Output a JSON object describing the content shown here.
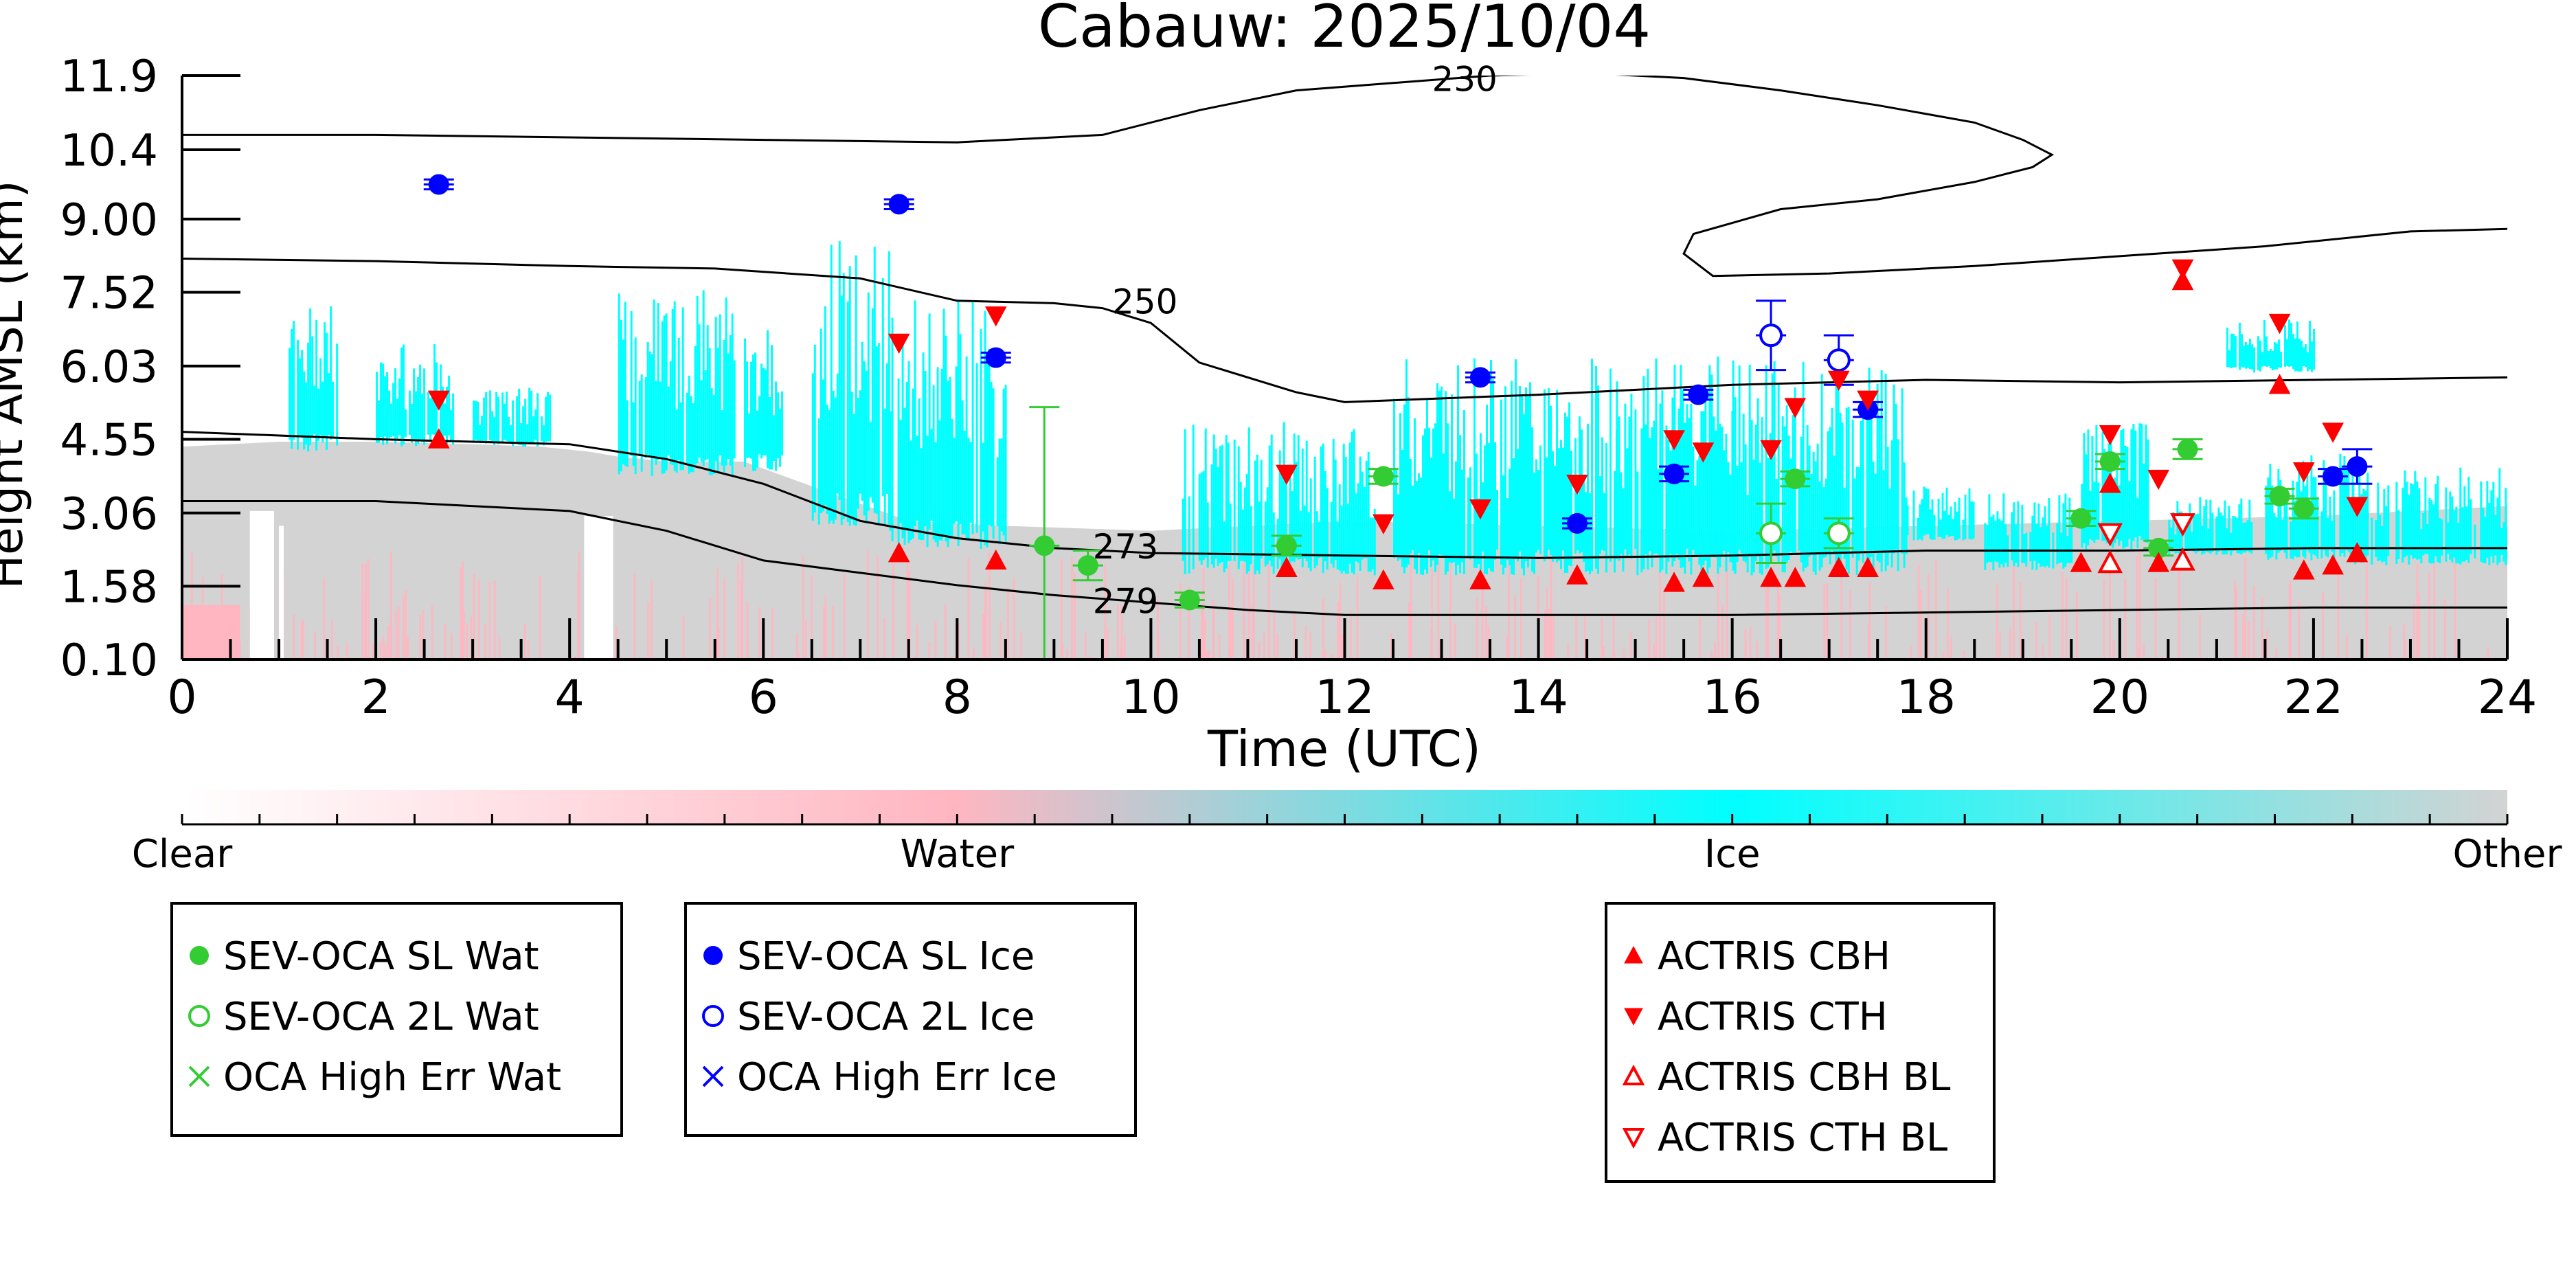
{
  "chart_data": {
    "type": "scatter",
    "title": "Cabauw: 2025/10/04",
    "xlabel": "Time (UTC)",
    "ylabel": "Height AMSL (km)",
    "xlim": [
      0,
      24
    ],
    "x_ticks": [
      0,
      2,
      4,
      6,
      8,
      10,
      12,
      14,
      16,
      18,
      20,
      22,
      24
    ],
    "y_ticks": [
      "0.10",
      "1.58",
      "3.06",
      "4.55",
      "6.03",
      "7.52",
      "9.00",
      "10.4",
      "11.9"
    ],
    "y_tick_values": [
      0.1,
      1.58,
      3.06,
      4.55,
      6.03,
      7.52,
      9.0,
      10.4,
      11.9
    ],
    "colorbar": {
      "labels": [
        "Clear",
        "Water",
        "Ice",
        "Other"
      ],
      "colors": [
        "#ffffff",
        "#ffb6c1",
        "#00ffff",
        "#d3d3d3"
      ]
    },
    "contours": [
      {
        "label": "230",
        "label_x": 12.9,
        "label_y": 11.7,
        "x": [
          0,
          2,
          4,
          6,
          8,
          9.5,
          10.5,
          11.5,
          12.5,
          13.5,
          14.5,
          15.5,
          16.5,
          17.5,
          18.5,
          19.0,
          19.3,
          19.1,
          18.5,
          17.5,
          16.5,
          15.6,
          15.5,
          15.8,
          17,
          18.5,
          20,
          21.5,
          23,
          24
        ],
        "y": [
          10.7,
          10.7,
          10.65,
          10.6,
          10.55,
          10.7,
          11.2,
          11.6,
          11.75,
          11.9,
          11.95,
          11.85,
          11.6,
          11.3,
          10.95,
          10.6,
          10.3,
          10.05,
          9.75,
          9.4,
          9.2,
          8.7,
          8.3,
          7.85,
          7.9,
          8.05,
          8.25,
          8.45,
          8.75,
          8.8
        ]
      },
      {
        "label": "250",
        "label_x": 9.6,
        "label_y": 7.2,
        "x": [
          0,
          2,
          4,
          5.5,
          7,
          8,
          9,
          9.5,
          10,
          10.5,
          11.5,
          12,
          14,
          16,
          18,
          20,
          22,
          24
        ],
        "y": [
          8.2,
          8.15,
          8.05,
          8.0,
          7.8,
          7.35,
          7.3,
          7.2,
          6.9,
          6.1,
          5.5,
          5.3,
          5.45,
          5.65,
          5.75,
          5.7,
          5.75,
          5.8
        ]
      },
      {
        "label": "273",
        "label_x": 9.4,
        "label_y": 2.25,
        "x": [
          0,
          2,
          4,
          5,
          6,
          7,
          8,
          9,
          10,
          12,
          14,
          16,
          18,
          20,
          22,
          24
        ],
        "y": [
          4.7,
          4.55,
          4.45,
          4.15,
          3.65,
          2.9,
          2.55,
          2.35,
          2.25,
          2.2,
          2.15,
          2.2,
          2.3,
          2.3,
          2.35,
          2.35
        ]
      },
      {
        "label": "279",
        "label_x": 9.4,
        "label_y": 1.15,
        "x": [
          0,
          2,
          4,
          5,
          6,
          7,
          8,
          9,
          10,
          11,
          12,
          14,
          16,
          18,
          20,
          22,
          24
        ],
        "y": [
          3.3,
          3.3,
          3.1,
          2.7,
          2.1,
          1.85,
          1.6,
          1.4,
          1.25,
          1.1,
          1.0,
          1.0,
          1.0,
          1.05,
          1.1,
          1.15,
          1.15
        ]
      }
    ],
    "series": [
      {
        "name": "SEV-OCA SL Wat",
        "color": "#33cc33",
        "marker": "filled-circle",
        "points": [
          [
            8.9,
            2.4,
            2.8
          ],
          [
            9.35,
            2.0,
            0.3
          ],
          [
            10.4,
            1.3,
            0.15
          ],
          [
            11.4,
            2.4,
            0.2
          ],
          [
            12.4,
            3.8,
            0.15
          ],
          [
            16.65,
            3.75,
            0.15
          ],
          [
            19.6,
            2.95,
            0.15
          ],
          [
            19.9,
            4.1,
            0.15
          ],
          [
            20.4,
            2.35,
            0.15
          ],
          [
            20.7,
            4.35,
            0.2
          ],
          [
            21.65,
            3.4,
            0.15
          ],
          [
            21.9,
            3.15,
            0.2
          ]
        ]
      },
      {
        "name": "SEV-OCA 2L Wat",
        "color": "#33cc33",
        "marker": "open-circle",
        "points": [
          [
            16.4,
            2.65,
            0.6
          ],
          [
            17.1,
            2.65,
            0.3
          ]
        ]
      },
      {
        "name": "OCA High Err Wat",
        "color": "#33cc33",
        "marker": "x",
        "points": []
      },
      {
        "name": "SEV-OCA SL Ice",
        "color": "#0000ff",
        "marker": "filled-circle",
        "points": [
          [
            2.65,
            9.7,
            0.1
          ],
          [
            7.4,
            9.3,
            0.1
          ],
          [
            8.4,
            6.2,
            0.1
          ],
          [
            13.4,
            5.8,
            0.1
          ],
          [
            14.4,
            2.85,
            0.1
          ],
          [
            15.4,
            3.85,
            0.15
          ],
          [
            15.65,
            5.45,
            0.1
          ],
          [
            17.4,
            5.15,
            0.15
          ],
          [
            22.2,
            3.8,
            0.15
          ],
          [
            22.45,
            4.0,
            0.35
          ]
        ]
      },
      {
        "name": "SEV-OCA 2L Ice",
        "color": "#0000ff",
        "marker": "open-circle",
        "points": [
          [
            16.4,
            6.65,
            0.7
          ],
          [
            17.1,
            6.15,
            0.5
          ]
        ]
      },
      {
        "name": "OCA High Err Ice",
        "color": "#0000ff",
        "marker": "x",
        "points": []
      },
      {
        "name": "ACTRIS CBH",
        "color": "#ff0000",
        "marker": "triangle-up",
        "points": [
          [
            2.65,
            4.55
          ],
          [
            7.4,
            2.25
          ],
          [
            8.4,
            2.1
          ],
          [
            11.4,
            1.95
          ],
          [
            12.4,
            1.7
          ],
          [
            13.4,
            1.7
          ],
          [
            14.4,
            1.8
          ],
          [
            15.4,
            1.65
          ],
          [
            15.7,
            1.75
          ],
          [
            16.4,
            1.75
          ],
          [
            16.65,
            1.75
          ],
          [
            17.1,
            1.95
          ],
          [
            17.4,
            1.95
          ],
          [
            19.6,
            2.05
          ],
          [
            19.9,
            3.65
          ],
          [
            20.4,
            2.05
          ],
          [
            21.65,
            5.65
          ],
          [
            20.65,
            7.75
          ],
          [
            21.9,
            1.9
          ],
          [
            22.2,
            2.0
          ],
          [
            22.45,
            2.25
          ]
        ]
      },
      {
        "name": "ACTRIS CTH",
        "color": "#ff0000",
        "marker": "triangle-down",
        "points": [
          [
            2.65,
            5.35
          ],
          [
            7.4,
            6.5
          ],
          [
            8.4,
            7.05
          ],
          [
            11.4,
            3.85
          ],
          [
            12.4,
            2.85
          ],
          [
            13.4,
            3.15
          ],
          [
            14.4,
            3.65
          ],
          [
            15.4,
            4.55
          ],
          [
            15.7,
            4.3
          ],
          [
            16.4,
            4.35
          ],
          [
            16.65,
            5.2
          ],
          [
            17.1,
            5.75
          ],
          [
            17.4,
            5.35
          ],
          [
            19.9,
            4.65
          ],
          [
            20.4,
            3.75
          ],
          [
            20.65,
            8.0
          ],
          [
            21.65,
            6.9
          ],
          [
            21.9,
            3.9
          ],
          [
            22.2,
            4.7
          ],
          [
            22.45,
            3.2
          ]
        ]
      },
      {
        "name": "ACTRIS CBH BL",
        "color": "#ff0000",
        "marker": "open-triangle-up",
        "points": [
          [
            19.9,
            2.05
          ],
          [
            20.65,
            2.1
          ]
        ]
      },
      {
        "name": "ACTRIS CTH BL",
        "color": "#ff0000",
        "marker": "open-triangle-down",
        "points": [
          [
            19.9,
            2.65
          ],
          [
            20.65,
            2.85
          ]
        ]
      }
    ],
    "legend_groups": [
      [
        "SEV-OCA SL Wat",
        "SEV-OCA 2L Wat",
        "OCA High Err Wat"
      ],
      [
        "SEV-OCA SL Ice",
        "SEV-OCA 2L Ice",
        "OCA High Err Ice"
      ],
      [
        "ACTRIS CBH",
        "ACTRIS CTH",
        "ACTRIS CBH BL",
        "ACTRIS CTH BL"
      ]
    ],
    "curtain": {
      "other_top": [
        [
          0,
          4.4
        ],
        [
          1,
          4.5
        ],
        [
          2,
          4.5
        ],
        [
          3,
          4.45
        ],
        [
          3.7,
          4.4
        ],
        [
          4.2,
          4.3
        ],
        [
          4.5,
          4.2
        ],
        [
          5,
          4.1
        ],
        [
          5.8,
          4.1
        ],
        [
          6.5,
          3.6
        ],
        [
          7.5,
          2.9
        ],
        [
          8.5,
          2.8
        ],
        [
          10,
          2.7
        ],
        [
          12,
          2.9
        ],
        [
          14,
          2.8
        ],
        [
          16,
          2.7
        ],
        [
          18,
          2.8
        ],
        [
          20,
          2.9
        ],
        [
          22,
          3.0
        ],
        [
          24,
          3.2
        ]
      ],
      "ice_blocks": [
        [
          1.1,
          1.6,
          4.3,
          7.3
        ],
        [
          2.0,
          2.8,
          4.4,
          6.5
        ],
        [
          3.0,
          3.8,
          4.4,
          5.6
        ],
        [
          4.5,
          5.7,
          3.8,
          7.6
        ],
        [
          5.8,
          6.2,
          3.9,
          6.8
        ],
        [
          6.5,
          7.3,
          2.8,
          8.6
        ],
        [
          7.3,
          8.5,
          2.3,
          7.4
        ],
        [
          10.3,
          12.3,
          1.8,
          4.9
        ],
        [
          12.5,
          14.8,
          1.8,
          6.2
        ],
        [
          14.8,
          16.0,
          1.8,
          6.3
        ],
        [
          16.0,
          17.8,
          1.8,
          6.2
        ],
        [
          17.8,
          18.5,
          2.5,
          3.6
        ],
        [
          18.6,
          19.5,
          1.9,
          3.6
        ],
        [
          19.6,
          20.3,
          2.3,
          4.9
        ],
        [
          20.5,
          21.4,
          2.2,
          3.4
        ],
        [
          21.5,
          22.4,
          2.1,
          4.3
        ],
        [
          22.4,
          24.0,
          2.0,
          4.0
        ],
        [
          21.1,
          22.0,
          5.9,
          7.0
        ]
      ]
    }
  }
}
